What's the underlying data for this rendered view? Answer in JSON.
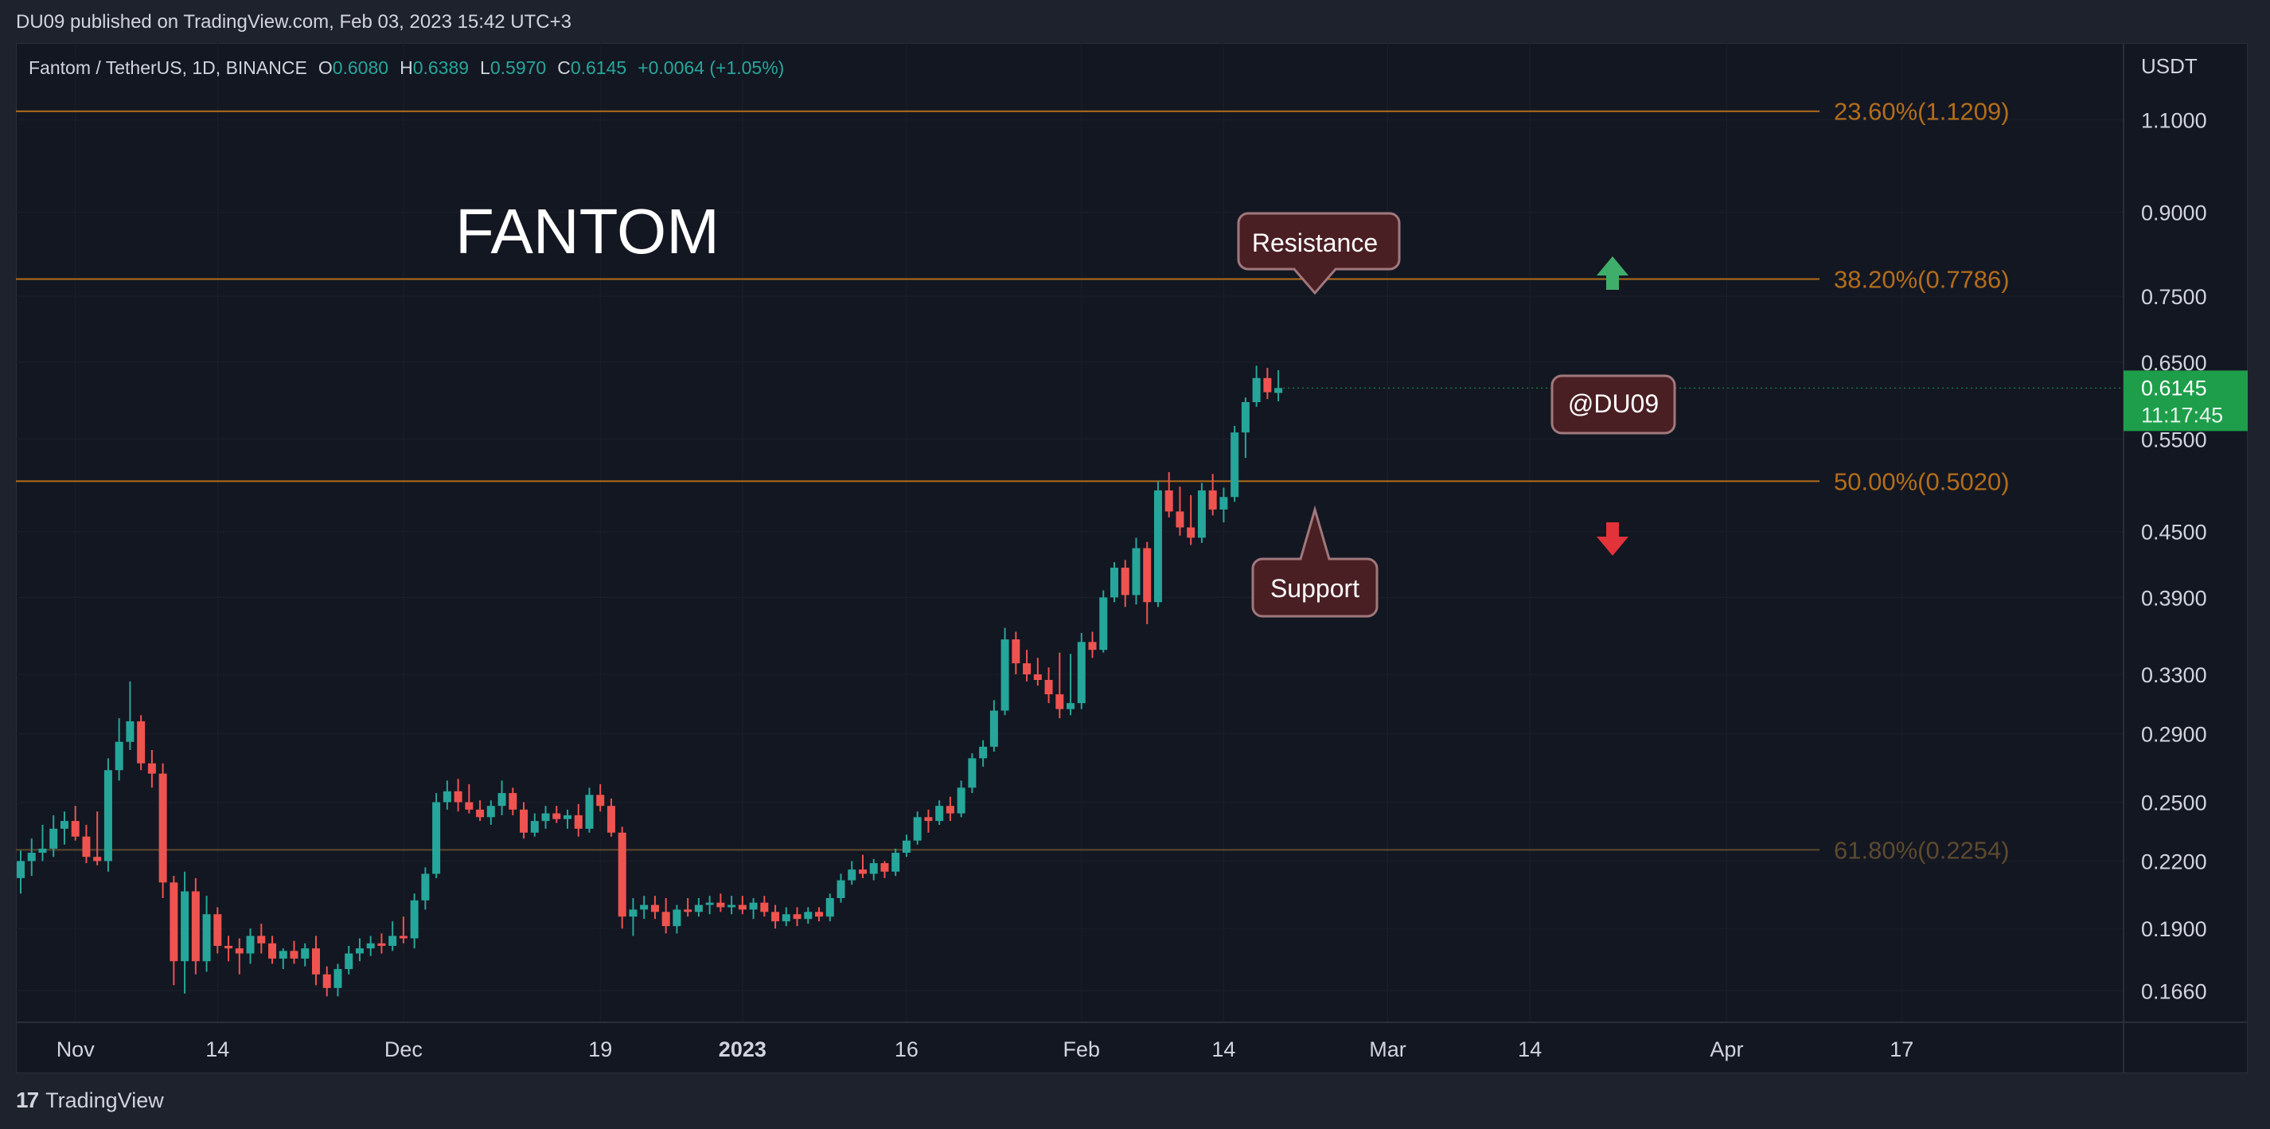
{
  "header": {
    "published": "DU09 published on TradingView.com, Feb 03, 2023 15:42 UTC+3"
  },
  "footer": {
    "brand": "TradingView",
    "logo_glyph": "17"
  },
  "symbol": {
    "name": "Fantom / TetherUS, 1D, BINANCE",
    "open_label": "O",
    "open": "0.6080",
    "high_label": "H",
    "high": "0.6389",
    "low_label": "L",
    "low": "0.5970",
    "close_label": "C",
    "close": "0.6145",
    "change": "+0.0064 (+1.05%)"
  },
  "price_axis": {
    "currency": "USDT",
    "ticks": [
      "1.1000",
      "0.9000",
      "0.7500",
      "0.6500",
      "0.5500",
      "0.4500",
      "0.3900",
      "0.3300",
      "0.2900",
      "0.2500",
      "0.2200",
      "0.1900",
      "0.1660"
    ],
    "last_price": "0.6145",
    "countdown": "11:17:45"
  },
  "colors": {
    "up": "#26a69a",
    "down": "#ef5350",
    "fib": "#b36d1a",
    "fib_faint": "#5c4a2e",
    "last_price_bg": "#1e9e4a",
    "callout_bg": "#4a1f24",
    "callout_border": "#a0787c",
    "arrow_up": "#3fae6a",
    "arrow_down": "#e2323a"
  },
  "annotations": {
    "title": "FANTOM",
    "resistance": "Resistance",
    "support": "Support",
    "watermark": "@DU09"
  },
  "chart_data": {
    "type": "candlestick",
    "scale": "log",
    "ylim": [
      0.155,
      1.3
    ],
    "x_ticks": [
      "Nov",
      "14",
      "Dec",
      "19",
      "2023",
      "16",
      "Feb",
      "14",
      "Mar",
      "14",
      "Apr",
      "17"
    ],
    "x_tick_dates": [
      "2022-11-01",
      "2022-11-14",
      "2022-12-01",
      "2022-12-19",
      "2023-01-01",
      "2023-01-16",
      "2023-02-01",
      "2023-02-14",
      "2023-03-01",
      "2023-03-14",
      "2023-04-01",
      "2023-04-17"
    ],
    "fib_levels": [
      {
        "label": "23.60%(1.1209)",
        "value": 1.1209
      },
      {
        "label": "38.20%(0.7786)",
        "value": 0.7786
      },
      {
        "label": "50.00%(0.5020)",
        "value": 0.502
      },
      {
        "label": "61.80%(0.2254)",
        "value": 0.2254
      }
    ],
    "start_date": "2022-10-27",
    "candles": [
      {
        "o": 0.212,
        "h": 0.225,
        "l": 0.205,
        "c": 0.22
      },
      {
        "o": 0.22,
        "h": 0.231,
        "l": 0.213,
        "c": 0.224
      },
      {
        "o": 0.224,
        "h": 0.238,
        "l": 0.22,
        "c": 0.226
      },
      {
        "o": 0.226,
        "h": 0.243,
        "l": 0.222,
        "c": 0.236
      },
      {
        "o": 0.236,
        "h": 0.245,
        "l": 0.228,
        "c": 0.24
      },
      {
        "o": 0.24,
        "h": 0.248,
        "l": 0.23,
        "c": 0.232
      },
      {
        "o": 0.232,
        "h": 0.238,
        "l": 0.219,
        "c": 0.222
      },
      {
        "o": 0.222,
        "h": 0.245,
        "l": 0.218,
        "c": 0.22
      },
      {
        "o": 0.22,
        "h": 0.275,
        "l": 0.215,
        "c": 0.268
      },
      {
        "o": 0.268,
        "h": 0.3,
        "l": 0.262,
        "c": 0.285
      },
      {
        "o": 0.285,
        "h": 0.325,
        "l": 0.28,
        "c": 0.298
      },
      {
        "o": 0.298,
        "h": 0.302,
        "l": 0.268,
        "c": 0.272
      },
      {
        "o": 0.272,
        "h": 0.28,
        "l": 0.258,
        "c": 0.266
      },
      {
        "o": 0.266,
        "h": 0.272,
        "l": 0.203,
        "c": 0.21
      },
      {
        "o": 0.21,
        "h": 0.213,
        "l": 0.168,
        "c": 0.177
      },
      {
        "o": 0.177,
        "h": 0.215,
        "l": 0.165,
        "c": 0.206
      },
      {
        "o": 0.206,
        "h": 0.212,
        "l": 0.172,
        "c": 0.177
      },
      {
        "o": 0.177,
        "h": 0.204,
        "l": 0.173,
        "c": 0.196
      },
      {
        "o": 0.196,
        "h": 0.199,
        "l": 0.18,
        "c": 0.183
      },
      {
        "o": 0.183,
        "h": 0.187,
        "l": 0.177,
        "c": 0.182
      },
      {
        "o": 0.182,
        "h": 0.186,
        "l": 0.172,
        "c": 0.18
      },
      {
        "o": 0.18,
        "h": 0.19,
        "l": 0.176,
        "c": 0.187
      },
      {
        "o": 0.187,
        "h": 0.192,
        "l": 0.18,
        "c": 0.184
      },
      {
        "o": 0.184,
        "h": 0.187,
        "l": 0.176,
        "c": 0.178
      },
      {
        "o": 0.178,
        "h": 0.182,
        "l": 0.174,
        "c": 0.181
      },
      {
        "o": 0.181,
        "h": 0.185,
        "l": 0.176,
        "c": 0.178
      },
      {
        "o": 0.178,
        "h": 0.184,
        "l": 0.175,
        "c": 0.182
      },
      {
        "o": 0.182,
        "h": 0.187,
        "l": 0.168,
        "c": 0.172
      },
      {
        "o": 0.172,
        "h": 0.175,
        "l": 0.164,
        "c": 0.167
      },
      {
        "o": 0.167,
        "h": 0.176,
        "l": 0.164,
        "c": 0.174
      },
      {
        "o": 0.174,
        "h": 0.183,
        "l": 0.172,
        "c": 0.18
      },
      {
        "o": 0.18,
        "h": 0.186,
        "l": 0.177,
        "c": 0.182
      },
      {
        "o": 0.182,
        "h": 0.187,
        "l": 0.179,
        "c": 0.184
      },
      {
        "o": 0.184,
        "h": 0.188,
        "l": 0.18,
        "c": 0.183
      },
      {
        "o": 0.183,
        "h": 0.193,
        "l": 0.181,
        "c": 0.187
      },
      {
        "o": 0.187,
        "h": 0.195,
        "l": 0.184,
        "c": 0.186
      },
      {
        "o": 0.186,
        "h": 0.205,
        "l": 0.182,
        "c": 0.202
      },
      {
        "o": 0.202,
        "h": 0.217,
        "l": 0.198,
        "c": 0.214
      },
      {
        "o": 0.214,
        "h": 0.255,
        "l": 0.212,
        "c": 0.25
      },
      {
        "o": 0.25,
        "h": 0.262,
        "l": 0.246,
        "c": 0.256
      },
      {
        "o": 0.256,
        "h": 0.263,
        "l": 0.245,
        "c": 0.25
      },
      {
        "o": 0.25,
        "h": 0.26,
        "l": 0.244,
        "c": 0.246
      },
      {
        "o": 0.246,
        "h": 0.251,
        "l": 0.24,
        "c": 0.242
      },
      {
        "o": 0.242,
        "h": 0.251,
        "l": 0.238,
        "c": 0.248
      },
      {
        "o": 0.248,
        "h": 0.262,
        "l": 0.243,
        "c": 0.255
      },
      {
        "o": 0.255,
        "h": 0.258,
        "l": 0.243,
        "c": 0.246
      },
      {
        "o": 0.246,
        "h": 0.25,
        "l": 0.231,
        "c": 0.234
      },
      {
        "o": 0.234,
        "h": 0.244,
        "l": 0.232,
        "c": 0.24
      },
      {
        "o": 0.24,
        "h": 0.248,
        "l": 0.236,
        "c": 0.244
      },
      {
        "o": 0.244,
        "h": 0.248,
        "l": 0.239,
        "c": 0.241
      },
      {
        "o": 0.241,
        "h": 0.246,
        "l": 0.236,
        "c": 0.243
      },
      {
        "o": 0.243,
        "h": 0.249,
        "l": 0.232,
        "c": 0.236
      },
      {
        "o": 0.236,
        "h": 0.258,
        "l": 0.234,
        "c": 0.254
      },
      {
        "o": 0.254,
        "h": 0.26,
        "l": 0.245,
        "c": 0.248
      },
      {
        "o": 0.248,
        "h": 0.252,
        "l": 0.232,
        "c": 0.234
      },
      {
        "o": 0.234,
        "h": 0.237,
        "l": 0.19,
        "c": 0.195
      },
      {
        "o": 0.195,
        "h": 0.203,
        "l": 0.187,
        "c": 0.198
      },
      {
        "o": 0.198,
        "h": 0.204,
        "l": 0.194,
        "c": 0.2
      },
      {
        "o": 0.2,
        "h": 0.204,
        "l": 0.194,
        "c": 0.197
      },
      {
        "o": 0.197,
        "h": 0.203,
        "l": 0.188,
        "c": 0.191
      },
      {
        "o": 0.191,
        "h": 0.2,
        "l": 0.188,
        "c": 0.198
      },
      {
        "o": 0.198,
        "h": 0.203,
        "l": 0.195,
        "c": 0.197
      },
      {
        "o": 0.197,
        "h": 0.203,
        "l": 0.195,
        "c": 0.2
      },
      {
        "o": 0.2,
        "h": 0.204,
        "l": 0.196,
        "c": 0.201
      },
      {
        "o": 0.201,
        "h": 0.205,
        "l": 0.197,
        "c": 0.199
      },
      {
        "o": 0.199,
        "h": 0.204,
        "l": 0.196,
        "c": 0.2
      },
      {
        "o": 0.2,
        "h": 0.204,
        "l": 0.196,
        "c": 0.198
      },
      {
        "o": 0.198,
        "h": 0.203,
        "l": 0.194,
        "c": 0.201
      },
      {
        "o": 0.201,
        "h": 0.204,
        "l": 0.195,
        "c": 0.197
      },
      {
        "o": 0.197,
        "h": 0.2,
        "l": 0.19,
        "c": 0.193
      },
      {
        "o": 0.193,
        "h": 0.199,
        "l": 0.191,
        "c": 0.196
      },
      {
        "o": 0.196,
        "h": 0.199,
        "l": 0.191,
        "c": 0.194
      },
      {
        "o": 0.194,
        "h": 0.199,
        "l": 0.192,
        "c": 0.197
      },
      {
        "o": 0.197,
        "h": 0.199,
        "l": 0.193,
        "c": 0.195
      },
      {
        "o": 0.195,
        "h": 0.205,
        "l": 0.193,
        "c": 0.203
      },
      {
        "o": 0.203,
        "h": 0.214,
        "l": 0.201,
        "c": 0.211
      },
      {
        "o": 0.211,
        "h": 0.22,
        "l": 0.209,
        "c": 0.216
      },
      {
        "o": 0.216,
        "h": 0.223,
        "l": 0.212,
        "c": 0.214
      },
      {
        "o": 0.214,
        "h": 0.221,
        "l": 0.211,
        "c": 0.219
      },
      {
        "o": 0.219,
        "h": 0.22,
        "l": 0.212,
        "c": 0.215
      },
      {
        "o": 0.215,
        "h": 0.226,
        "l": 0.213,
        "c": 0.224
      },
      {
        "o": 0.224,
        "h": 0.233,
        "l": 0.222,
        "c": 0.23
      },
      {
        "o": 0.23,
        "h": 0.245,
        "l": 0.228,
        "c": 0.242
      },
      {
        "o": 0.242,
        "h": 0.246,
        "l": 0.234,
        "c": 0.24
      },
      {
        "o": 0.24,
        "h": 0.251,
        "l": 0.238,
        "c": 0.248
      },
      {
        "o": 0.248,
        "h": 0.253,
        "l": 0.24,
        "c": 0.244
      },
      {
        "o": 0.244,
        "h": 0.262,
        "l": 0.242,
        "c": 0.258
      },
      {
        "o": 0.258,
        "h": 0.278,
        "l": 0.255,
        "c": 0.275
      },
      {
        "o": 0.275,
        "h": 0.286,
        "l": 0.27,
        "c": 0.282
      },
      {
        "o": 0.282,
        "h": 0.312,
        "l": 0.279,
        "c": 0.305
      },
      {
        "o": 0.305,
        "h": 0.365,
        "l": 0.302,
        "c": 0.356
      },
      {
        "o": 0.356,
        "h": 0.362,
        "l": 0.33,
        "c": 0.338
      },
      {
        "o": 0.338,
        "h": 0.348,
        "l": 0.325,
        "c": 0.33
      },
      {
        "o": 0.33,
        "h": 0.342,
        "l": 0.322,
        "c": 0.326
      },
      {
        "o": 0.326,
        "h": 0.335,
        "l": 0.31,
        "c": 0.316
      },
      {
        "o": 0.316,
        "h": 0.346,
        "l": 0.3,
        "c": 0.306
      },
      {
        "o": 0.306,
        "h": 0.345,
        "l": 0.302,
        "c": 0.31
      },
      {
        "o": 0.31,
        "h": 0.361,
        "l": 0.306,
        "c": 0.354
      },
      {
        "o": 0.354,
        "h": 0.362,
        "l": 0.342,
        "c": 0.348
      },
      {
        "o": 0.348,
        "h": 0.396,
        "l": 0.346,
        "c": 0.39
      },
      {
        "o": 0.39,
        "h": 0.421,
        "l": 0.386,
        "c": 0.416
      },
      {
        "o": 0.416,
        "h": 0.423,
        "l": 0.382,
        "c": 0.392
      },
      {
        "o": 0.392,
        "h": 0.444,
        "l": 0.384,
        "c": 0.434
      },
      {
        "o": 0.434,
        "h": 0.44,
        "l": 0.368,
        "c": 0.386
      },
      {
        "o": 0.386,
        "h": 0.502,
        "l": 0.382,
        "c": 0.492
      },
      {
        "o": 0.492,
        "h": 0.512,
        "l": 0.464,
        "c": 0.47
      },
      {
        "o": 0.47,
        "h": 0.496,
        "l": 0.446,
        "c": 0.454
      },
      {
        "o": 0.454,
        "h": 0.487,
        "l": 0.437,
        "c": 0.444
      },
      {
        "o": 0.444,
        "h": 0.5,
        "l": 0.439,
        "c": 0.492
      },
      {
        "o": 0.492,
        "h": 0.51,
        "l": 0.466,
        "c": 0.472
      },
      {
        "o": 0.472,
        "h": 0.495,
        "l": 0.459,
        "c": 0.485
      },
      {
        "o": 0.485,
        "h": 0.566,
        "l": 0.48,
        "c": 0.558
      },
      {
        "o": 0.558,
        "h": 0.602,
        "l": 0.528,
        "c": 0.596
      },
      {
        "o": 0.596,
        "h": 0.645,
        "l": 0.59,
        "c": 0.628
      },
      {
        "o": 0.628,
        "h": 0.642,
        "l": 0.6,
        "c": 0.609
      },
      {
        "o": 0.608,
        "h": 0.6389,
        "l": 0.597,
        "c": 0.6145
      }
    ]
  }
}
